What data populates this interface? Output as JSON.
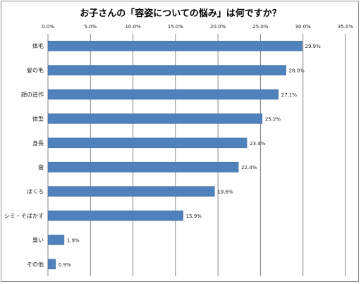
{
  "chart_data": {
    "type": "bar",
    "orientation": "horizontal",
    "title": "お子さんの「容姿についての悩み」は何ですか？",
    "xlabel": "",
    "ylabel": "",
    "xlim": [
      0,
      35
    ],
    "x_ticks": [
      "0.0%",
      "5.0%",
      "10.0%",
      "15.0%",
      "20.0%",
      "25.0%",
      "30.0%",
      "35.0%"
    ],
    "x_tick_values": [
      0,
      5,
      10,
      15,
      20,
      25,
      30,
      35
    ],
    "x_axis_position": "top",
    "grid": true,
    "bar_color": "#4f81bd",
    "categories": [
      "体毛",
      "髪の毛",
      "顔の造作",
      "体型",
      "身長",
      "歯",
      "ほくろ",
      "シミ・そばかす",
      "臭い",
      "その他"
    ],
    "values": [
      29.9,
      28.0,
      27.1,
      25.2,
      23.4,
      22.4,
      19.6,
      15.9,
      1.9,
      0.9
    ],
    "value_labels": [
      "29.9%",
      "28.0%",
      "27.1%",
      "25.2%",
      "23.4%",
      "22.4%",
      "19.6%",
      "15.9%",
      "1.9%",
      "0.9%"
    ]
  }
}
